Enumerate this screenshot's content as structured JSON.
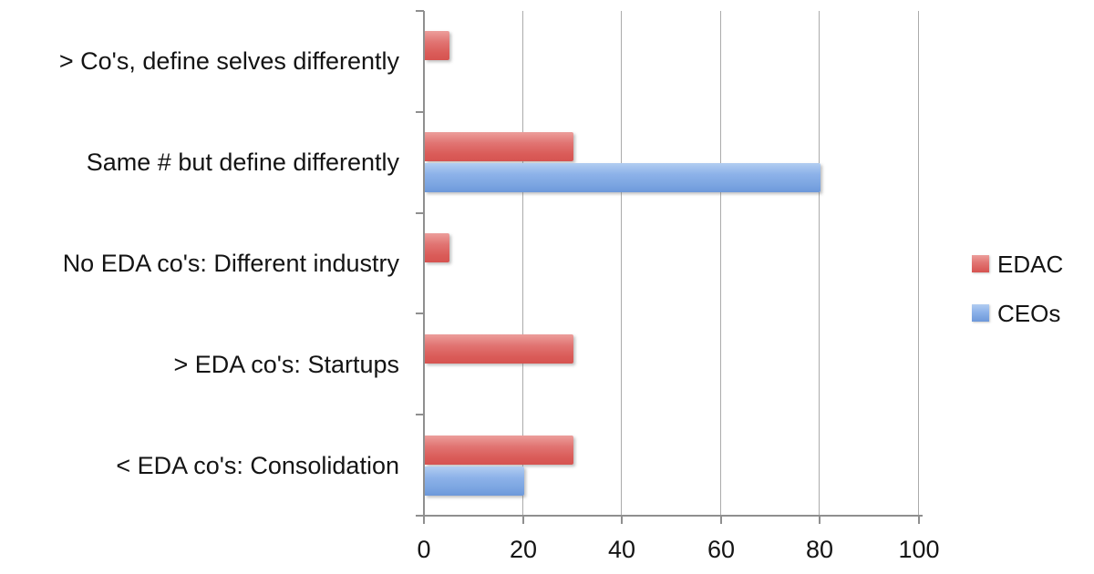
{
  "chart_data": {
    "type": "bar",
    "orientation": "horizontal",
    "title": "",
    "xlabel": "",
    "ylabel": "",
    "categories": [
      "> Co's, define selves differently",
      "Same # but define differently",
      "No EDA co's: Different industry",
      "> EDA co's: Startups",
      "< EDA co's: Consolidation"
    ],
    "series": [
      {
        "name": "EDAC",
        "color": "#dd615e",
        "values": [
          5,
          30,
          5,
          30,
          30
        ]
      },
      {
        "name": "CEOs",
        "color": "#7aa5e2",
        "values": [
          0,
          80,
          0,
          0,
          20
        ]
      }
    ],
    "xlim": [
      0,
      100
    ],
    "xticks": [
      0,
      20,
      40,
      60,
      80,
      100
    ],
    "grid": true,
    "legend_position": "right"
  },
  "colors": {
    "gridline": "#ababab",
    "axis": "#8f8f8f",
    "text": "#141414",
    "background": "#ffffff"
  }
}
